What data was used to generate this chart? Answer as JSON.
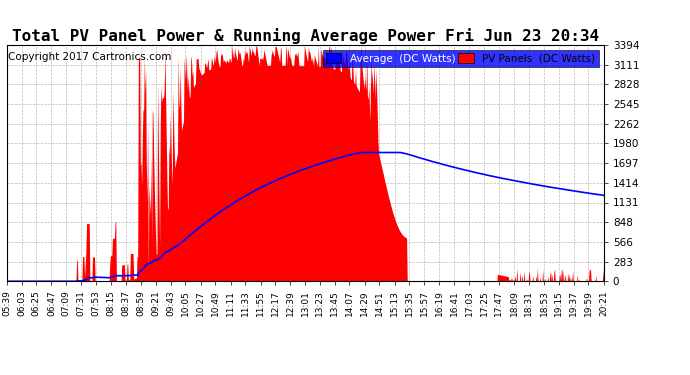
{
  "title": "Total PV Panel Power & Running Average Power Fri Jun 23 20:34",
  "copyright": "Copyright 2017 Cartronics.com",
  "legend_avg": "Average  (DC Watts)",
  "legend_pv": "PV Panels  (DC Watts)",
  "y_max": 3393.6,
  "y_min": 0.0,
  "y_ticks": [
    0.0,
    282.8,
    565.6,
    848.4,
    1131.2,
    1414.0,
    1696.8,
    1979.6,
    2262.4,
    2545.2,
    2828.0,
    3110.8,
    3393.6
  ],
  "pv_color": "#FF0000",
  "avg_color": "#0000FF",
  "background_color": "#FFFFFF",
  "grid_color": "#BBBBBB",
  "title_fontsize": 11.5,
  "copyright_fontsize": 7.5,
  "ylabel_fontsize": 7.5,
  "xlabel_fontsize": 6.5,
  "x_tick_labels": [
    "05:39",
    "06:03",
    "06:25",
    "06:47",
    "07:09",
    "07:31",
    "07:53",
    "08:15",
    "08:37",
    "08:59",
    "09:21",
    "09:43",
    "10:05",
    "10:27",
    "10:49",
    "11:11",
    "11:33",
    "11:55",
    "12:17",
    "12:39",
    "13:01",
    "13:23",
    "13:45",
    "14:07",
    "14:29",
    "14:51",
    "15:13",
    "15:35",
    "15:57",
    "16:19",
    "16:41",
    "17:03",
    "17:25",
    "17:47",
    "18:09",
    "18:31",
    "18:53",
    "19:15",
    "19:37",
    "19:59",
    "20:21"
  ]
}
